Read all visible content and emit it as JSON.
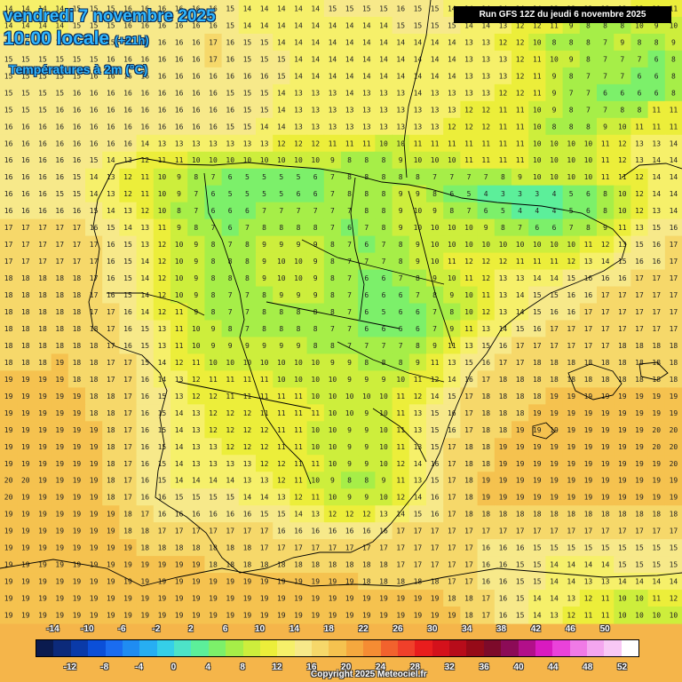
{
  "title": {
    "date": "vendredi 7 novembre 2025",
    "time": "10:00 locale",
    "lead": "(+21h)",
    "parameter": "Températures à 2m (°C)"
  },
  "run_info": "Run GFS 12Z du jeudi 6 novembre 2025",
  "copyright": "Copyright 2025 Meteociel.fr",
  "legend": {
    "labels_top": [
      "-14",
      "-10",
      "-6",
      "-2",
      "2",
      "6",
      "10",
      "14",
      "18",
      "22",
      "26",
      "30",
      "34",
      "38",
      "42",
      "46",
      "50"
    ],
    "labels_bottom": [
      "-12",
      "-8",
      "-4",
      "0",
      "4",
      "8",
      "12",
      "16",
      "20",
      "24",
      "28",
      "32",
      "36",
      "40",
      "44",
      "48",
      "52"
    ],
    "colors": [
      "#0a1b4f",
      "#0c2a7a",
      "#0a3aa8",
      "#0b4fd8",
      "#1a6cf0",
      "#1f8cf2",
      "#27aef2",
      "#35cfe8",
      "#4de3c8",
      "#5cef9a",
      "#7cf06a",
      "#a6ee48",
      "#cdee3c",
      "#ecee3a",
      "#f6f06a",
      "#f7e98a",
      "#f6d86a",
      "#f5c24f",
      "#f5a83e",
      "#f58c33",
      "#f2622d",
      "#f0402a",
      "#e91d1d",
      "#d4111b",
      "#b70c1a",
      "#960a18",
      "#7d0a2a",
      "#8c0b57",
      "#b20f8a",
      "#d91ac0",
      "#ea42da",
      "#f07ae6",
      "#f4a6ef",
      "#f8c8f5",
      "#ffffff"
    ]
  },
  "temperature_grid": [
    "14 14 14 14 15 15 15 16 16 16 16 16 16 15 14 14 14 14 14 15 15 15 15 16 15 15 14 14 14 14 14 14 13 13 13 13 13 12 11 11",
    "14 14 14 14 15 15 15 16 16 16 16 16 16 15 14 14 14 14 14 14 14 14 14 15 15 15 15 14 14 13 12 12 11 9 8 8 8 10 9 10",
    "15 15 15 15 15 15 15 15 16 16 16 16 17 16 15 15 14 14 14 14 14 14 14 14 14 14 14 13 13 12 12 10 8 8 8 7 9 8 8 9",
    "15 15 15 15 15 15 16 16 16 16 16 16 17 16 15 15 15 14 14 14 14 14 14 14 14 14 14 13 13 13 12 11 10 9 8 7 7 7 6 8",
    "15 15 15 15 15 16 16 16 16 16 16 16 16 16 16 16 15 14 14 14 14 14 14 14 14 14 14 13 13 13 12 11 9 8 7 7 7 6 6 8",
    "15 15 15 15 16 16 16 16 16 16 16 16 16 15 15 15 14 13 13 13 14 13 13 13 14 13 13 13 13 12 12 11 9 7 7 6 6 6 6 8",
    "15 15 15 16 16 16 16 16 16 16 16 16 16 16 15 15 14 13 13 13 13 13 13 13 13 13 13 12 12 11 11 10 9 8 7 7 8 8 11 11",
    "16 16 16 16 16 16 16 16 16 16 16 16 16 15 15 14 14 13 13 13 13 13 13 13 13 13 12 12 12 11 11 10 8 8 8 9 10 11 11 11",
    "16 16 16 16 16 16 16 16 14 13 13 13 13 13 13 13 12 12 12 11 11 11 10 10 11 11 11 11 11 11 11 10 10 10 10 11 12 13 13 14",
    "16 16 16 16 16 15 14 13 12 11 11 10 10 10 10 10 10 10 10 9 8 8 8 9 10 10 10 11 11 11 11 10 10 10 10 11 12 13 14 14",
    "16 16 16 16 15 14 13 12 11 10 9 8 7 6 5 5 5 5 6 7 8 8 8 8 8 7 7 7 7 8 9 10 10 10 10 11 11 12 14 14",
    "16 16 16 15 15 14 13 12 11 10 9 7 6 5 5 5 5 6 6 7 8 8 8 9 9 8 6 5 4 3 3 3 4 5 6 8 10 12 14 14",
    "16 16 16 16 16 15 14 13 12 10 8 7 6 6 6 7 7 7 7 7 7 8 8 9 10 9 8 7 6 5 4 4 4 5 6 8 10 12 13 14",
    "17 17 17 17 17 16 15 14 13 11 9 8 7 6 7 8 8 8 8 7 6 7 8 9 10 10 10 10 9 8 7 6 6 7 8 9 11 13 15 16",
    "17 17 17 17 17 17 16 15 13 12 10 9 8 7 8 9 9 9 9 8 7 6 7 8 9 10 10 10 10 10 10 10 10 10 11 12 13 15 16 17",
    "17 17 17 17 17 17 16 15 14 12 10 9 8 8 8 9 10 10 9 8 7 7 7 8 9 10 11 12 12 12 11 11 11 12 13 14 15 16 16 17",
    "18 18 18 18 18 17 16 15 14 12 10 9 8 8 8 9 10 10 9 8 7 6 6 7 8 9 10 11 12 13 13 14 14 15 16 16 16 17 17 17",
    "18 18 18 18 18 17 16 15 14 12 10 9 8 7 7 8 9 9 9 8 7 6 6 6 7 8 9 10 11 13 14 15 15 16 16 17 17 17 17 17",
    "18 18 18 18 18 17 17 16 14 12 11 9 8 7 7 8 8 8 8 8 7 6 5 6 6 7 8 10 12 13 14 15 16 16 17 17 17 17 17 17",
    "18 18 18 18 18 18 17 16 15 13 11 10 9 8 7 8 8 8 8 7 7 6 6 6 6 7 9 11 13 14 15 16 17 17 17 17 17 17 17 17",
    "18 18 18 18 18 18 17 16 15 13 11 10 9 9 9 9 9 9 8 8 7 7 7 7 8 9 11 13 15 16 17 17 17 17 17 17 18 18 18 18",
    "18 18 18 19 18 18 17 17 15 14 12 11 10 10 10 10 10 10 10 9 9 8 8 8 9 11 13 15 16 17 17 18 18 18 18 18 18 18 18 18",
    "19 19 19 19 18 18 17 17 16 14 13 12 11 11 11 11 10 10 10 10 9 9 9 10 11 12 14 16 17 18 18 18 18 18 18 18 18 18 18 18",
    "19 19 19 19 19 18 18 17 16 15 13 12 12 11 11 11 11 11 10 10 10 10 10 11 12 14 15 17 18 18 18 18 19 19 19 19 19 19 19 19",
    "19 19 19 19 19 18 18 17 16 15 14 13 12 12 12 11 11 11 11 10 10 9 10 11 13 15 16 17 18 18 18 19 19 19 19 19 19 19 19 19",
    "19 19 19 19 19 19 18 17 16 15 14 13 12 12 12 12 11 11 10 10 9 9 10 11 13 15 16 17 18 18 19 19 19 19 19 19 19 19 20 20",
    "19 19 19 19 19 19 18 17 16 15 14 13 13 12 12 12 11 11 10 10 9 9 10 11 13 15 17 18 18 19 19 19 19 19 19 19 19 19 20 20",
    "19 19 19 19 19 19 18 17 16 15 14 13 13 13 13 12 12 11 11 10 9 9 10 12 14 16 17 18 18 19 19 19 19 19 19 19 19 19 19 20",
    "20 20 19 19 19 19 18 17 16 15 14 14 14 14 13 13 12 11 10 9 8 8 9 11 13 15 17 18 19 19 19 19 19 19 19 19 19 19 19 19",
    "20 19 19 19 19 19 18 17 16 16 15 15 15 15 14 14 13 12 11 10 9 9 10 12 14 16 17 18 19 19 19 19 19 19 19 19 19 19 19 19",
    "19 19 19 19 19 19 19 18 17 16 16 16 16 16 16 15 15 14 13 12 12 12 13 14 15 16 17 18 18 18 18 18 18 18 18 18 18 18 18 18",
    "19 19 19 19 19 19 19 18 18 17 17 17 17 17 17 17 16 16 16 16 16 16 16 17 17 17 17 17 17 17 17 17 17 17 17 17 17 17 17 17",
    "19 19 19 19 19 19 19 19 18 18 18 18 18 18 18 17 17 17 17 17 17 17 17 17 17 17 17 17 16 16 16 15 15 15 15 15 15 15 15 15",
    "19 19 19 19 19 19 19 19 19 19 19 19 18 18 18 18 18 18 18 18 18 18 18 17 17 17 17 17 16 16 15 15 14 14 14 14 15 15 15 15",
    "19 19 19 19 19 19 19 19 19 19 19 19 19 19 19 19 19 19 19 19 19 18 18 18 18 18 17 17 16 16 15 15 14 14 13 13 14 14 14 14",
    "19 19 19 19 19 19 19 19 19 19 19 19 19 19 19 19 19 19 19 19 19 19 19 19 19 19 18 18 17 16 15 14 14 13 12 11 10 10 11 12",
    "19 19 19 19 19 19 19 19 19 19 19 19 19 19 19 19 19 19 19 19 19 19 19 19 19 19 19 18 17 16 15 14 13 12 11 11 10 10 10 10"
  ]
}
